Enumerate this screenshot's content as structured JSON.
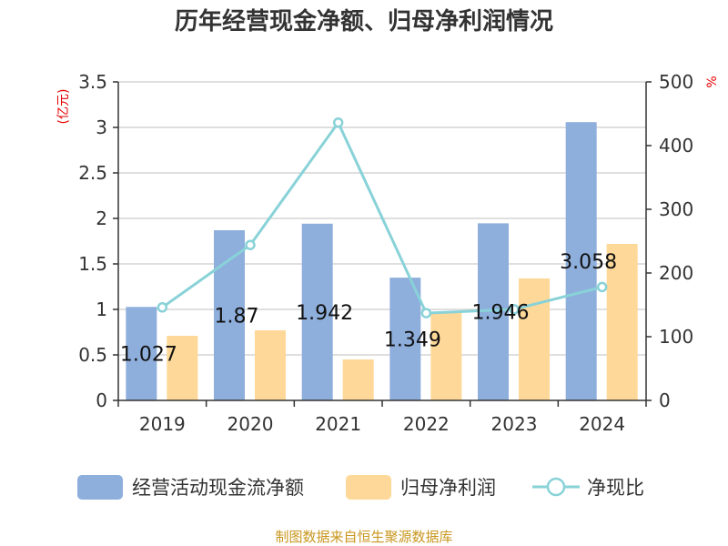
{
  "chart_data": {
    "type": "bar",
    "title": "历年经营现金净额、归母净利润情况",
    "categories": [
      "2019",
      "2020",
      "2021",
      "2022",
      "2023",
      "2024"
    ],
    "left_axis": {
      "unit": "(亿元)",
      "ylim": [
        0,
        3.5
      ],
      "ticks": [
        "0",
        "0.5",
        "1",
        "1.5",
        "2",
        "2.5",
        "3",
        "3.5"
      ]
    },
    "right_axis": {
      "unit": "%",
      "ylim": [
        0,
        500
      ],
      "ticks": [
        "0",
        "100",
        "200",
        "300",
        "400",
        "500"
      ]
    },
    "series": [
      {
        "name": "经营活动现金流净额",
        "type": "bar",
        "axis": "left",
        "color": "#8eaedc",
        "values": [
          1.027,
          1.87,
          1.942,
          1.349,
          1.946,
          3.058
        ],
        "labels": [
          "1.027",
          "1.87",
          "1.942",
          "1.349",
          "1.946",
          "3.058"
        ]
      },
      {
        "name": "归母净利润",
        "type": "bar",
        "axis": "left",
        "color": "#fed898",
        "values": [
          0.71,
          0.77,
          0.45,
          0.96,
          1.34,
          1.72
        ]
      },
      {
        "name": "净现比",
        "type": "line",
        "axis": "right",
        "color": "#88d2d8",
        "values": [
          146,
          244,
          436,
          137,
          143,
          178
        ]
      }
    ],
    "grid": true,
    "legend_position": "bottom"
  },
  "footer": {
    "source": "制图数据来自恒生聚源数据库"
  }
}
